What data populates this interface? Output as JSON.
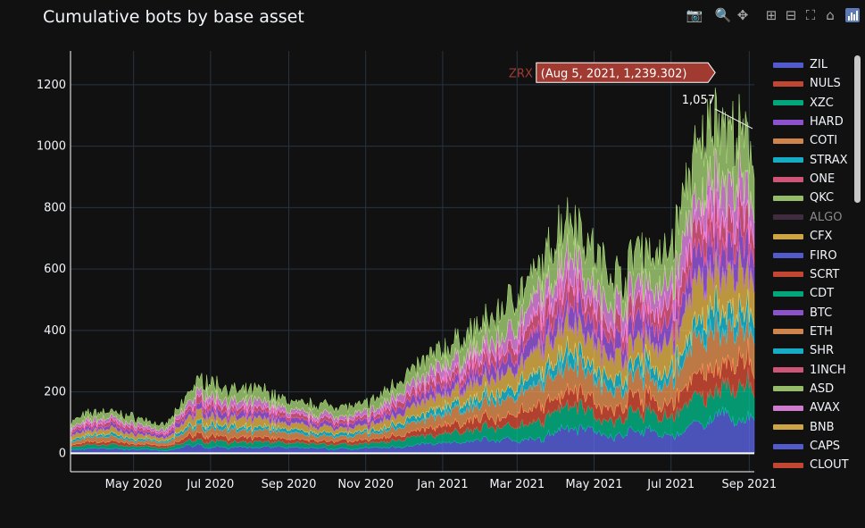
{
  "chart_data": {
    "type": "area",
    "title": "Cumulative bots by base asset",
    "x_start": "2020-03-12",
    "x_end": "2021-09-05",
    "x_ticks": [
      "May 2020",
      "Jul 2020",
      "Sep 2020",
      "Nov 2020",
      "Jan 2021",
      "Mar 2021",
      "May 2021",
      "Jul 2021",
      "Sep 2021"
    ],
    "x_tick_dates": [
      "2020-05-01",
      "2020-07-01",
      "2020-09-01",
      "2020-11-01",
      "2021-01-01",
      "2021-03-01",
      "2021-05-01",
      "2021-07-01",
      "2021-09-01"
    ],
    "y_ticks": [
      "0",
      "200",
      "400",
      "600",
      "800",
      "1000",
      "1200"
    ],
    "ylim": [
      -60,
      1310
    ],
    "grid": true,
    "legend_position": "right",
    "total_profile": [
      [
        "2020-03-12",
        110
      ],
      [
        "2020-03-25",
        140
      ],
      [
        "2020-04-10",
        150
      ],
      [
        "2020-04-25",
        135
      ],
      [
        "2020-05-10",
        120
      ],
      [
        "2020-05-25",
        95
      ],
      [
        "2020-06-05",
        150
      ],
      [
        "2020-06-15",
        230
      ],
      [
        "2020-06-25",
        265
      ],
      [
        "2020-07-10",
        240
      ],
      [
        "2020-07-25",
        215
      ],
      [
        "2020-08-10",
        230
      ],
      [
        "2020-08-25",
        195
      ],
      [
        "2020-09-10",
        175
      ],
      [
        "2020-09-25",
        175
      ],
      [
        "2020-10-10",
        170
      ],
      [
        "2020-10-25",
        165
      ],
      [
        "2020-11-10",
        195
      ],
      [
        "2020-11-25",
        255
      ],
      [
        "2020-12-10",
        300
      ],
      [
        "2020-12-25",
        355
      ],
      [
        "2021-01-10",
        390
      ],
      [
        "2021-01-25",
        440
      ],
      [
        "2021-02-10",
        480
      ],
      [
        "2021-02-25",
        560
      ],
      [
        "2021-03-10",
        600
      ],
      [
        "2021-03-25",
        700
      ],
      [
        "2021-04-05",
        830
      ],
      [
        "2021-04-15",
        860
      ],
      [
        "2021-04-25",
        760
      ],
      [
        "2021-05-05",
        690
      ],
      [
        "2021-05-15",
        650
      ],
      [
        "2021-05-25",
        620
      ],
      [
        "2021-06-05",
        760
      ],
      [
        "2021-06-15",
        720
      ],
      [
        "2021-06-25",
        690
      ],
      [
        "2021-07-05",
        800
      ],
      [
        "2021-07-15",
        1000
      ],
      [
        "2021-07-25",
        1080
      ],
      [
        "2021-08-05",
        1239
      ],
      [
        "2021-08-15",
        1150
      ],
      [
        "2021-08-25",
        1120
      ],
      [
        "2021-09-05",
        1057
      ]
    ],
    "series": [
      {
        "name": "ZIL",
        "color": "#636efa"
      },
      {
        "name": "NULS",
        "color": "#EF553B"
      },
      {
        "name": "XZC",
        "color": "#00cc96"
      },
      {
        "name": "HARD",
        "color": "#ab63fa"
      },
      {
        "name": "COTI",
        "color": "#FFA15A"
      },
      {
        "name": "STRAX",
        "color": "#19d3f3"
      },
      {
        "name": "ONE",
        "color": "#FF6692"
      },
      {
        "name": "QKC",
        "color": "#B6E880"
      },
      {
        "name": "ALGO",
        "color": "#6e4a6e",
        "hidden": true
      },
      {
        "name": "CFX",
        "color": "#FECB52"
      },
      {
        "name": "FIRO",
        "color": "#636efa"
      },
      {
        "name": "SCRT",
        "color": "#EF553B"
      },
      {
        "name": "CDT",
        "color": "#00cc96"
      },
      {
        "name": "BTC",
        "color": "#ab63fa"
      },
      {
        "name": "ETH",
        "color": "#FFA15A"
      },
      {
        "name": "SHR",
        "color": "#19d3f3"
      },
      {
        "name": "1INCH",
        "color": "#FF6692"
      },
      {
        "name": "ASD",
        "color": "#B6E880"
      },
      {
        "name": "AVAX",
        "color": "#FF97FF"
      },
      {
        "name": "BNB",
        "color": "#FECB52"
      },
      {
        "name": "CAPS",
        "color": "#636efa"
      },
      {
        "name": "CLOUT",
        "color": "#EF553B"
      }
    ],
    "hover": {
      "series": "ZRX",
      "label": "(Aug 5, 2021, 1,239.302)",
      "date": "2021-08-05",
      "value": 1239.302
    },
    "end_annotation": {
      "label": "1,057",
      "date": "2021-09-05",
      "value": 1057
    }
  },
  "modebar": {
    "icons": [
      "camera-icon",
      "zoom-icon",
      "pan-icon",
      "zoom-in-icon",
      "zoom-out-icon",
      "autoscale-icon",
      "home-icon",
      "plotly-logo-icon"
    ]
  }
}
